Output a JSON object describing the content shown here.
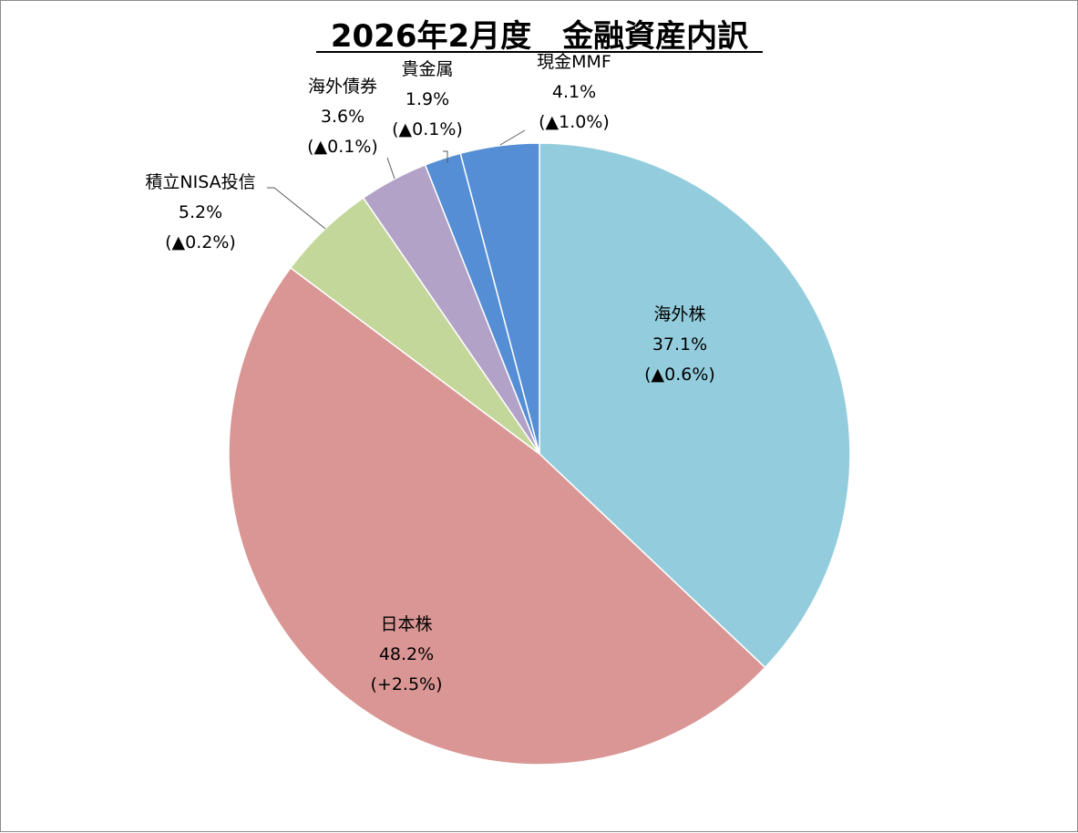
{
  "chart_data": {
    "type": "pie",
    "title": "2026年2月度　金融資産内訳",
    "start_angle_deg": 0,
    "direction": "clockwise",
    "slices": [
      {
        "key": "kaigai-kabu",
        "label": "海外株",
        "value": 37.1,
        "percent": "37.1%",
        "change": "(▲0.6%)",
        "color": "#93CDDD"
      },
      {
        "key": "nihon-kabu",
        "label": "日本株",
        "value": 48.2,
        "percent": "48.2%",
        "change": "(+2.5%)",
        "color": "#D99694"
      },
      {
        "key": "tsumitate-nisa",
        "label": "積立NISA投信",
        "value": 5.2,
        "percent": "5.2%",
        "change": "(▲0.2%)",
        "color": "#C4D79B"
      },
      {
        "key": "kaigai-saiken",
        "label": "海外債券",
        "value": 3.6,
        "percent": "3.6%",
        "change": "(▲0.1%)",
        "color": "#B3A2C7"
      },
      {
        "key": "kikinzoku",
        "label": "貴金属",
        "value": 1.9,
        "percent": "1.9%",
        "change": "(▲0.1%)",
        "color": "#558ED5"
      },
      {
        "key": "genkin-mmf",
        "label": "現金MMF",
        "value": 4.1,
        "percent": "4.1%",
        "change": "(▲1.0%)",
        "color": "#558ED5"
      }
    ]
  }
}
